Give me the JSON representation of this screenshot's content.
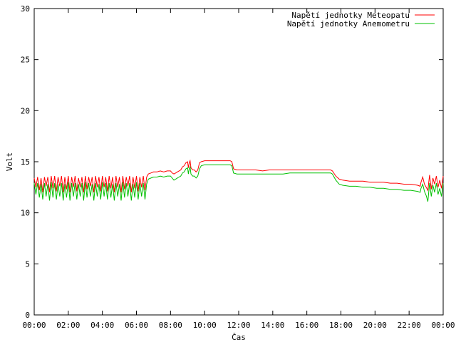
{
  "chart_data": {
    "type": "line",
    "title": "",
    "xlabel": "Čas",
    "ylabel": "Volt",
    "xlim": [
      0,
      24
    ],
    "ylim": [
      0,
      30
    ],
    "x_ticks": [
      "00:00",
      "02:00",
      "04:00",
      "06:00",
      "08:00",
      "10:00",
      "12:00",
      "14:00",
      "16:00",
      "18:00",
      "20:00",
      "22:00",
      "00:00"
    ],
    "y_ticks": [
      "0",
      "5",
      "10",
      "15",
      "20",
      "25",
      "30"
    ],
    "grid": false,
    "legend_position": "top-right",
    "series": [
      {
        "name": "Napětí jednotky Meteopatu",
        "color": "#ff0000",
        "points": [
          [
            0.0,
            13.4
          ],
          [
            0.1,
            12.5
          ],
          [
            0.2,
            13.5
          ],
          [
            0.3,
            12.2
          ],
          [
            0.4,
            13.4
          ],
          [
            0.5,
            12.0
          ],
          [
            0.6,
            13.5
          ],
          [
            0.7,
            12.6
          ],
          [
            0.8,
            13.5
          ],
          [
            0.9,
            12.0
          ],
          [
            1.0,
            13.6
          ],
          [
            1.1,
            12.4
          ],
          [
            1.2,
            13.6
          ],
          [
            1.3,
            12.1
          ],
          [
            1.4,
            13.5
          ],
          [
            1.5,
            12.6
          ],
          [
            1.6,
            13.6
          ],
          [
            1.7,
            12.0
          ],
          [
            1.8,
            13.5
          ],
          [
            1.9,
            12.3
          ],
          [
            2.0,
            13.6
          ],
          [
            2.1,
            12.0
          ],
          [
            2.2,
            13.5
          ],
          [
            2.3,
            12.5
          ],
          [
            2.4,
            13.6
          ],
          [
            2.5,
            12.1
          ],
          [
            2.6,
            13.4
          ],
          [
            2.7,
            12.5
          ],
          [
            2.8,
            13.5
          ],
          [
            2.9,
            12.0
          ],
          [
            3.0,
            13.6
          ],
          [
            3.1,
            12.3
          ],
          [
            3.2,
            13.5
          ],
          [
            3.3,
            12.6
          ],
          [
            3.4,
            13.5
          ],
          [
            3.5,
            12.0
          ],
          [
            3.6,
            13.6
          ],
          [
            3.7,
            12.5
          ],
          [
            3.8,
            13.5
          ],
          [
            3.9,
            12.1
          ],
          [
            4.0,
            13.6
          ],
          [
            4.1,
            12.5
          ],
          [
            4.2,
            13.5
          ],
          [
            4.3,
            12.1
          ],
          [
            4.4,
            13.6
          ],
          [
            4.5,
            12.4
          ],
          [
            4.6,
            13.5
          ],
          [
            4.7,
            12.0
          ],
          [
            4.8,
            13.6
          ],
          [
            4.9,
            12.5
          ],
          [
            5.0,
            13.5
          ],
          [
            5.1,
            12.0
          ],
          [
            5.2,
            13.6
          ],
          [
            5.3,
            12.3
          ],
          [
            5.4,
            13.5
          ],
          [
            5.5,
            12.6
          ],
          [
            5.6,
            13.6
          ],
          [
            5.7,
            12.0
          ],
          [
            5.8,
            13.5
          ],
          [
            5.9,
            12.4
          ],
          [
            6.0,
            13.6
          ],
          [
            6.1,
            12.1
          ],
          [
            6.2,
            13.5
          ],
          [
            6.3,
            12.5
          ],
          [
            6.4,
            13.6
          ],
          [
            6.5,
            12.2
          ],
          [
            6.6,
            13.5
          ],
          [
            6.7,
            13.8
          ],
          [
            6.85,
            13.9
          ],
          [
            7.0,
            14.0
          ],
          [
            7.2,
            14.0
          ],
          [
            7.4,
            14.1
          ],
          [
            7.6,
            14.0
          ],
          [
            7.8,
            14.1
          ],
          [
            8.0,
            14.1
          ],
          [
            8.1,
            13.9
          ],
          [
            8.2,
            13.8
          ],
          [
            8.3,
            13.9
          ],
          [
            8.4,
            14.0
          ],
          [
            8.5,
            14.1
          ],
          [
            8.6,
            14.2
          ],
          [
            8.7,
            14.5
          ],
          [
            8.8,
            14.6
          ],
          [
            8.9,
            14.9
          ],
          [
            9.0,
            15.0
          ],
          [
            9.05,
            14.4
          ],
          [
            9.1,
            14.9
          ],
          [
            9.15,
            15.1
          ],
          [
            9.2,
            14.4
          ],
          [
            9.3,
            14.2
          ],
          [
            9.4,
            14.2
          ],
          [
            9.5,
            14.0
          ],
          [
            9.6,
            14.2
          ],
          [
            9.7,
            14.9
          ],
          [
            9.8,
            15.0
          ],
          [
            10.0,
            15.1
          ],
          [
            10.5,
            15.1
          ],
          [
            11.0,
            15.1
          ],
          [
            11.5,
            15.1
          ],
          [
            11.6,
            15.0
          ],
          [
            11.7,
            14.3
          ],
          [
            11.9,
            14.2
          ],
          [
            12.2,
            14.2
          ],
          [
            12.6,
            14.2
          ],
          [
            13.0,
            14.2
          ],
          [
            13.4,
            14.1
          ],
          [
            13.8,
            14.2
          ],
          [
            14.2,
            14.2
          ],
          [
            14.6,
            14.2
          ],
          [
            15.0,
            14.2
          ],
          [
            15.4,
            14.2
          ],
          [
            15.8,
            14.2
          ],
          [
            16.2,
            14.2
          ],
          [
            16.6,
            14.2
          ],
          [
            17.0,
            14.2
          ],
          [
            17.4,
            14.2
          ],
          [
            17.5,
            14.1
          ],
          [
            17.7,
            13.6
          ],
          [
            17.9,
            13.3
          ],
          [
            18.1,
            13.2
          ],
          [
            18.5,
            13.1
          ],
          [
            18.9,
            13.1
          ],
          [
            19.3,
            13.1
          ],
          [
            19.7,
            13.0
          ],
          [
            20.1,
            13.0
          ],
          [
            20.5,
            13.0
          ],
          [
            20.9,
            12.9
          ],
          [
            21.3,
            12.9
          ],
          [
            21.7,
            12.8
          ],
          [
            22.1,
            12.8
          ],
          [
            22.5,
            12.7
          ],
          [
            22.65,
            12.6
          ],
          [
            22.7,
            13.0
          ],
          [
            22.8,
            13.5
          ],
          [
            22.9,
            12.8
          ],
          [
            23.0,
            12.5
          ],
          [
            23.1,
            12.2
          ],
          [
            23.2,
            13.7
          ],
          [
            23.3,
            12.3
          ],
          [
            23.4,
            13.4
          ],
          [
            23.5,
            12.8
          ],
          [
            23.6,
            13.6
          ],
          [
            23.7,
            12.5
          ],
          [
            23.8,
            13.2
          ],
          [
            23.9,
            12.4
          ],
          [
            24.0,
            13.6
          ]
        ]
      },
      {
        "name": "Napětí jednotky Anemometru",
        "color": "#00c000",
        "points": [
          [
            0.0,
            12.9
          ],
          [
            0.1,
            11.8
          ],
          [
            0.2,
            12.9
          ],
          [
            0.3,
            11.5
          ],
          [
            0.4,
            12.8
          ],
          [
            0.5,
            11.3
          ],
          [
            0.6,
            12.9
          ],
          [
            0.7,
            11.6
          ],
          [
            0.8,
            12.8
          ],
          [
            0.9,
            11.2
          ],
          [
            1.0,
            13.0
          ],
          [
            1.1,
            11.5
          ],
          [
            1.2,
            12.9
          ],
          [
            1.3,
            11.3
          ],
          [
            1.4,
            12.8
          ],
          [
            1.5,
            11.6
          ],
          [
            1.6,
            12.9
          ],
          [
            1.7,
            11.2
          ],
          [
            1.8,
            12.8
          ],
          [
            1.9,
            11.5
          ],
          [
            2.0,
            13.0
          ],
          [
            2.1,
            11.2
          ],
          [
            2.2,
            12.9
          ],
          [
            2.3,
            11.6
          ],
          [
            2.4,
            12.9
          ],
          [
            2.5,
            11.3
          ],
          [
            2.6,
            12.8
          ],
          [
            2.7,
            11.6
          ],
          [
            2.8,
            12.9
          ],
          [
            2.9,
            11.2
          ],
          [
            3.0,
            13.0
          ],
          [
            3.1,
            11.5
          ],
          [
            3.2,
            12.9
          ],
          [
            3.3,
            11.6
          ],
          [
            3.4,
            12.8
          ],
          [
            3.5,
            11.2
          ],
          [
            3.6,
            12.9
          ],
          [
            3.7,
            11.6
          ],
          [
            3.8,
            12.8
          ],
          [
            3.9,
            11.3
          ],
          [
            4.0,
            13.0
          ],
          [
            4.1,
            11.6
          ],
          [
            4.2,
            12.9
          ],
          [
            4.3,
            11.3
          ],
          [
            4.4,
            12.9
          ],
          [
            4.5,
            11.5
          ],
          [
            4.6,
            12.8
          ],
          [
            4.7,
            11.2
          ],
          [
            4.8,
            12.9
          ],
          [
            4.9,
            11.6
          ],
          [
            5.0,
            12.8
          ],
          [
            5.1,
            11.2
          ],
          [
            5.2,
            13.0
          ],
          [
            5.3,
            11.5
          ],
          [
            5.4,
            12.9
          ],
          [
            5.5,
            11.6
          ],
          [
            5.6,
            12.9
          ],
          [
            5.7,
            11.2
          ],
          [
            5.8,
            12.8
          ],
          [
            5.9,
            11.5
          ],
          [
            6.0,
            13.0
          ],
          [
            6.1,
            11.3
          ],
          [
            6.2,
            12.9
          ],
          [
            6.3,
            11.6
          ],
          [
            6.4,
            12.9
          ],
          [
            6.5,
            11.3
          ],
          [
            6.6,
            12.8
          ],
          [
            6.7,
            13.3
          ],
          [
            6.85,
            13.4
          ],
          [
            7.0,
            13.5
          ],
          [
            7.2,
            13.5
          ],
          [
            7.4,
            13.6
          ],
          [
            7.6,
            13.5
          ],
          [
            7.8,
            13.6
          ],
          [
            8.0,
            13.6
          ],
          [
            8.1,
            13.4
          ],
          [
            8.2,
            13.2
          ],
          [
            8.3,
            13.3
          ],
          [
            8.4,
            13.4
          ],
          [
            8.5,
            13.5
          ],
          [
            8.6,
            13.6
          ],
          [
            8.7,
            13.9
          ],
          [
            8.8,
            14.0
          ],
          [
            8.9,
            14.3
          ],
          [
            9.0,
            14.4
          ],
          [
            9.05,
            13.8
          ],
          [
            9.1,
            14.3
          ],
          [
            9.15,
            14.5
          ],
          [
            9.2,
            13.8
          ],
          [
            9.3,
            13.6
          ],
          [
            9.4,
            13.6
          ],
          [
            9.5,
            13.4
          ],
          [
            9.6,
            13.6
          ],
          [
            9.7,
            14.3
          ],
          [
            9.8,
            14.6
          ],
          [
            10.0,
            14.7
          ],
          [
            10.5,
            14.7
          ],
          [
            11.0,
            14.7
          ],
          [
            11.5,
            14.7
          ],
          [
            11.6,
            14.6
          ],
          [
            11.7,
            13.9
          ],
          [
            11.9,
            13.8
          ],
          [
            12.2,
            13.8
          ],
          [
            12.6,
            13.8
          ],
          [
            13.0,
            13.8
          ],
          [
            13.4,
            13.8
          ],
          [
            13.8,
            13.8
          ],
          [
            14.2,
            13.8
          ],
          [
            14.6,
            13.8
          ],
          [
            15.0,
            13.9
          ],
          [
            15.4,
            13.9
          ],
          [
            15.8,
            13.9
          ],
          [
            16.2,
            13.9
          ],
          [
            16.6,
            13.9
          ],
          [
            17.0,
            13.9
          ],
          [
            17.4,
            13.9
          ],
          [
            17.5,
            13.8
          ],
          [
            17.7,
            13.2
          ],
          [
            17.9,
            12.8
          ],
          [
            18.1,
            12.7
          ],
          [
            18.5,
            12.6
          ],
          [
            18.9,
            12.6
          ],
          [
            19.3,
            12.5
          ],
          [
            19.7,
            12.5
          ],
          [
            20.1,
            12.4
          ],
          [
            20.5,
            12.4
          ],
          [
            20.9,
            12.3
          ],
          [
            21.3,
            12.3
          ],
          [
            21.7,
            12.2
          ],
          [
            22.1,
            12.2
          ],
          [
            22.5,
            12.1
          ],
          [
            22.65,
            12.0
          ],
          [
            22.7,
            12.4
          ],
          [
            22.8,
            12.8
          ],
          [
            22.9,
            12.1
          ],
          [
            23.0,
            11.7
          ],
          [
            23.1,
            11.1
          ],
          [
            23.2,
            12.9
          ],
          [
            23.3,
            11.6
          ],
          [
            23.4,
            12.7
          ],
          [
            23.5,
            12.0
          ],
          [
            23.6,
            12.9
          ],
          [
            23.7,
            11.8
          ],
          [
            23.8,
            12.4
          ],
          [
            23.9,
            11.6
          ],
          [
            24.0,
            12.9
          ]
        ]
      }
    ]
  }
}
